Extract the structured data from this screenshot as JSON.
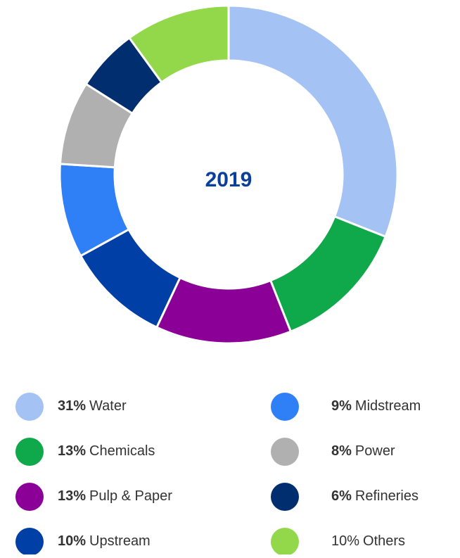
{
  "chart_data": {
    "type": "donut",
    "center_label": "2019",
    "categories": [
      "Water",
      "Chemicals",
      "Pulp & Paper",
      "Upstream",
      "Midstream",
      "Power",
      "Refineries",
      "Others"
    ],
    "values": [
      31,
      13,
      13,
      10,
      9,
      8,
      6,
      10
    ],
    "value_labels": [
      "31%",
      "13%",
      "13%",
      "10%",
      "9%",
      "8%",
      "6%",
      "10%"
    ],
    "value_label_bold": [
      true,
      true,
      true,
      true,
      true,
      true,
      true,
      false
    ],
    "colors": [
      "#a4c2f4",
      "#0fa84a",
      "#8b0096",
      "#003fa5",
      "#2f7ff7",
      "#b0b0b0",
      "#002e6e",
      "#92d84a"
    ],
    "legend": "bottom"
  }
}
